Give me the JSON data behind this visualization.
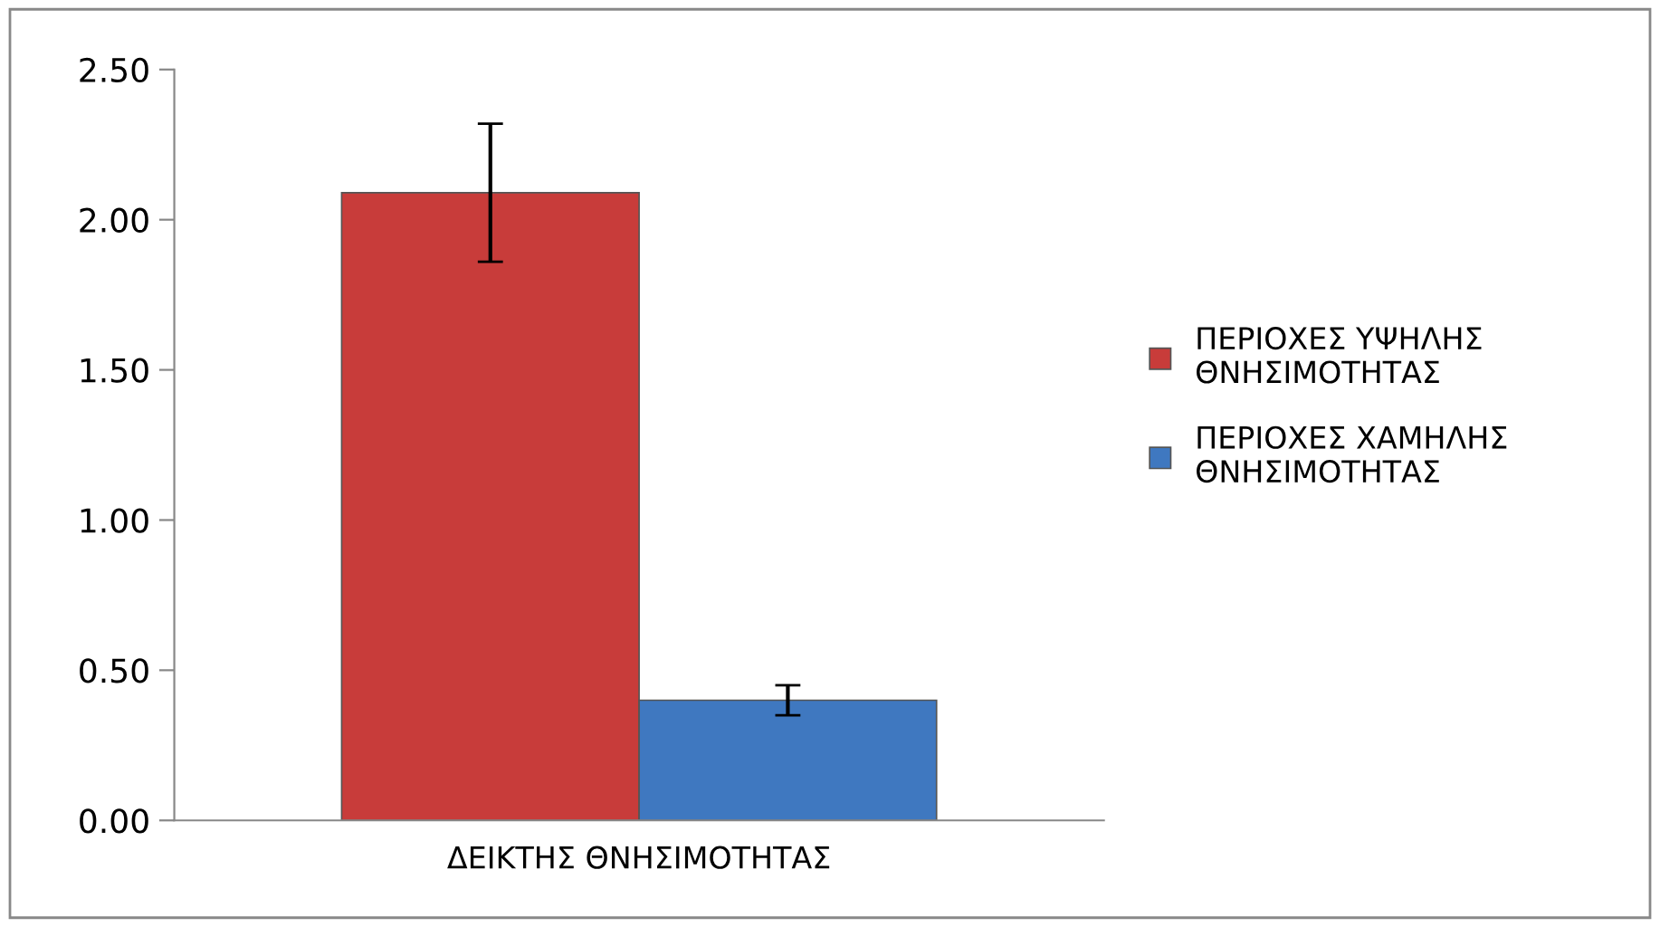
{
  "chart_data": {
    "type": "bar",
    "categories": [
      "ΔΕΙΚΤΗΣ ΘΝΗΣΙΜΟΤΗΤΑΣ"
    ],
    "series": [
      {
        "name": "ΠΕΡΙΟΧΕΣ ΥΨΗΛΗΣ ΘΝΗΣΙΜΟΤΗΤΑΣ",
        "color": "#c83c3a",
        "values": [
          2.09
        ],
        "errors": [
          [
            1.86,
            2.32
          ]
        ]
      },
      {
        "name": "ΠΕΡΙΟΧΕΣ ΧΑΜΗΛΗΣ ΘΝΗΣΙΜΟΤΗΤΑΣ",
        "color": "#3f78c0",
        "values": [
          0.4
        ],
        "errors": [
          [
            0.35,
            0.45
          ]
        ]
      }
    ],
    "ylim": [
      0,
      2.5
    ],
    "yticks": [
      {
        "value": 0,
        "label": "0.00"
      },
      {
        "value": 0.5,
        "label": "0.50"
      },
      {
        "value": 1,
        "label": "1.00"
      },
      {
        "value": 1.5,
        "label": "1.50"
      },
      {
        "value": 2,
        "label": "2.00"
      },
      {
        "value": 2.5,
        "label": "2.50"
      }
    ],
    "grid": false,
    "legend": "right"
  }
}
